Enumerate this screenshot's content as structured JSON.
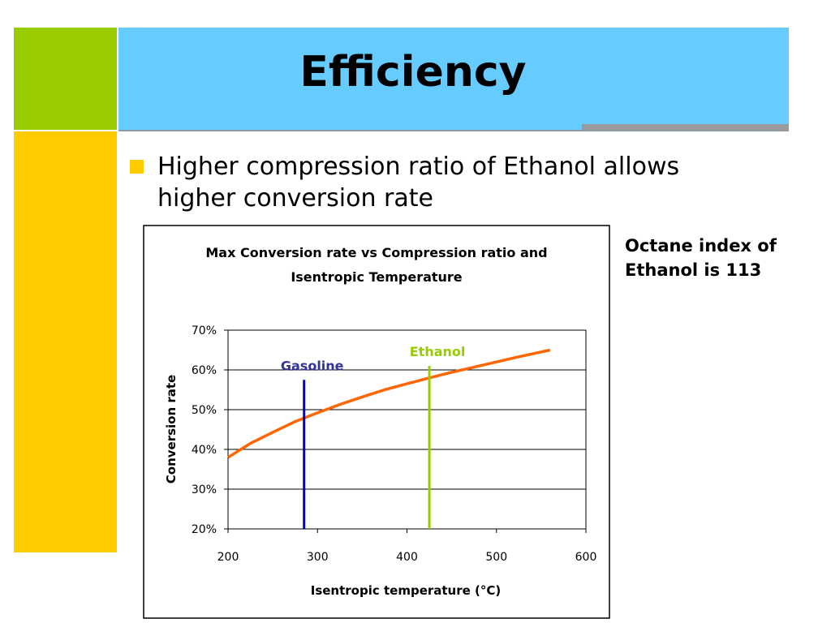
{
  "slide": {
    "title": "Efficiency",
    "bullet": "Higher compression ratio of Ethanol allows higher conversion rate",
    "side_note": "Octane index of Ethanol is 113",
    "colors": {
      "green_block": "#99cc00",
      "yellow_block": "#ffcc00",
      "title_bar": "#66ccff",
      "bullet": "#ffcc00"
    }
  },
  "chart_data": {
    "type": "line",
    "title": "Max Conversion rate vs Compression ratio and Isentropic Temperature",
    "title_lines": [
      "Max Conversion rate vs Compression ratio and",
      "Isentropic Temperature"
    ],
    "xlabel": "Isentropic temperature (°C)",
    "ylabel": "Conversion rate",
    "xlim": [
      200,
      600
    ],
    "ylim": [
      0.2,
      0.7
    ],
    "xticks": [
      200,
      300,
      400,
      500,
      600
    ],
    "xtick_labels": [
      "200",
      "300",
      "400",
      "500",
      "600"
    ],
    "yticks": [
      0.2,
      0.3,
      0.4,
      0.5,
      0.6,
      0.7
    ],
    "ytick_labels": [
      "20%",
      "30%",
      "40%",
      "50%",
      "60%",
      "70%"
    ],
    "grid": "horizontal",
    "series": [
      {
        "color": "#ff6600",
        "x": [
          200,
          225,
          250,
          275,
          300,
          325,
          350,
          375,
          400,
          425,
          450,
          475,
          500,
          525,
          560
        ],
        "y": [
          0.38,
          0.415,
          0.443,
          0.47,
          0.492,
          0.513,
          0.532,
          0.55,
          0.565,
          0.58,
          0.594,
          0.607,
          0.62,
          0.633,
          0.65
        ]
      }
    ],
    "annotations": [
      {
        "label": "Gasoline",
        "x": 285,
        "y_top": 0.575,
        "color": "#0000cc",
        "label_color": "#333399"
      },
      {
        "label": "Ethanol",
        "x": 425,
        "y_top": 0.61,
        "color": "#99cc00",
        "label_color": "#99cc00"
      }
    ]
  }
}
